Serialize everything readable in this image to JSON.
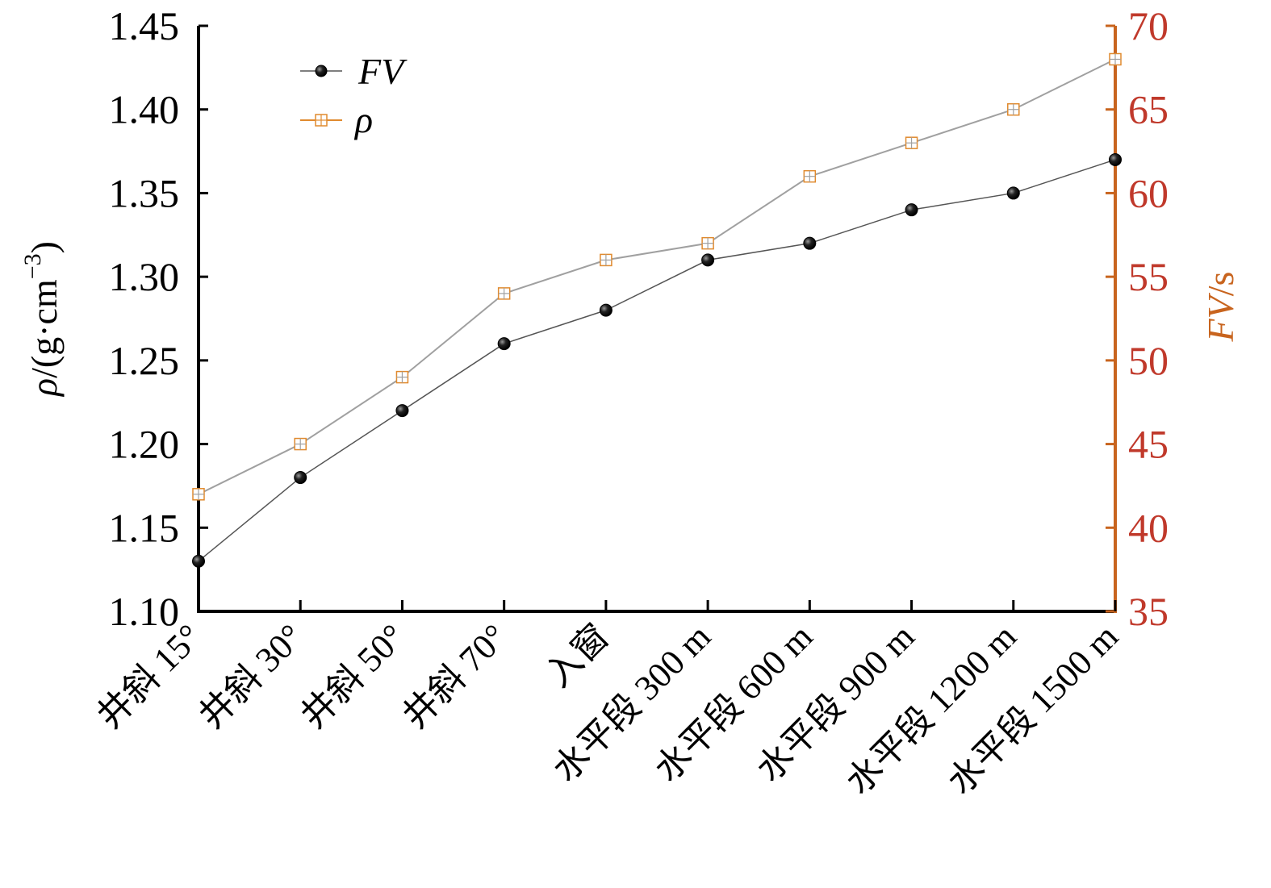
{
  "chart_data": {
    "type": "line",
    "categories": [
      "井斜 15°",
      "井斜 30°",
      "井斜 50°",
      "井斜 70°",
      "入窗",
      "水平段 300 m",
      "水平段 600 m",
      "水平段 900 m",
      "水平段 1200 m",
      "水平段 1500 m"
    ],
    "series": [
      {
        "name": "FV",
        "axis": "right",
        "marker": "filled-circle",
        "values": [
          38,
          43,
          47,
          51,
          53,
          56,
          57,
          59,
          60,
          62
        ]
      },
      {
        "name": "ρ",
        "axis": "left",
        "marker": "open-square",
        "values": [
          1.17,
          1.2,
          1.24,
          1.29,
          1.31,
          1.32,
          1.36,
          1.38,
          1.4,
          1.43
        ]
      }
    ],
    "left_axis": {
      "label_parts": [
        "ρ",
        "/(g·cm",
        "−3",
        ")"
      ],
      "ylim": [
        1.1,
        1.45
      ],
      "ticks": [
        "1.10",
        "1.15",
        "1.20",
        "1.25",
        "1.30",
        "1.35",
        "1.40",
        "1.45"
      ]
    },
    "right_axis": {
      "label_parts": [
        "FV",
        "/s"
      ],
      "ylim": [
        35,
        70
      ],
      "ticks": [
        "35",
        "40",
        "45",
        "50",
        "55",
        "60",
        "65",
        "70"
      ]
    },
    "legend": {
      "position": "top-left"
    },
    "grid": false,
    "colors": {
      "right_axis": "#C8641E",
      "right_tick_labels": "#C0392B",
      "right_title": "#C8641E",
      "rho_line": "#A0A0A0",
      "rho_marker": "#E08A2E",
      "fv_line": "#555555",
      "fv_marker": "#111111"
    }
  }
}
